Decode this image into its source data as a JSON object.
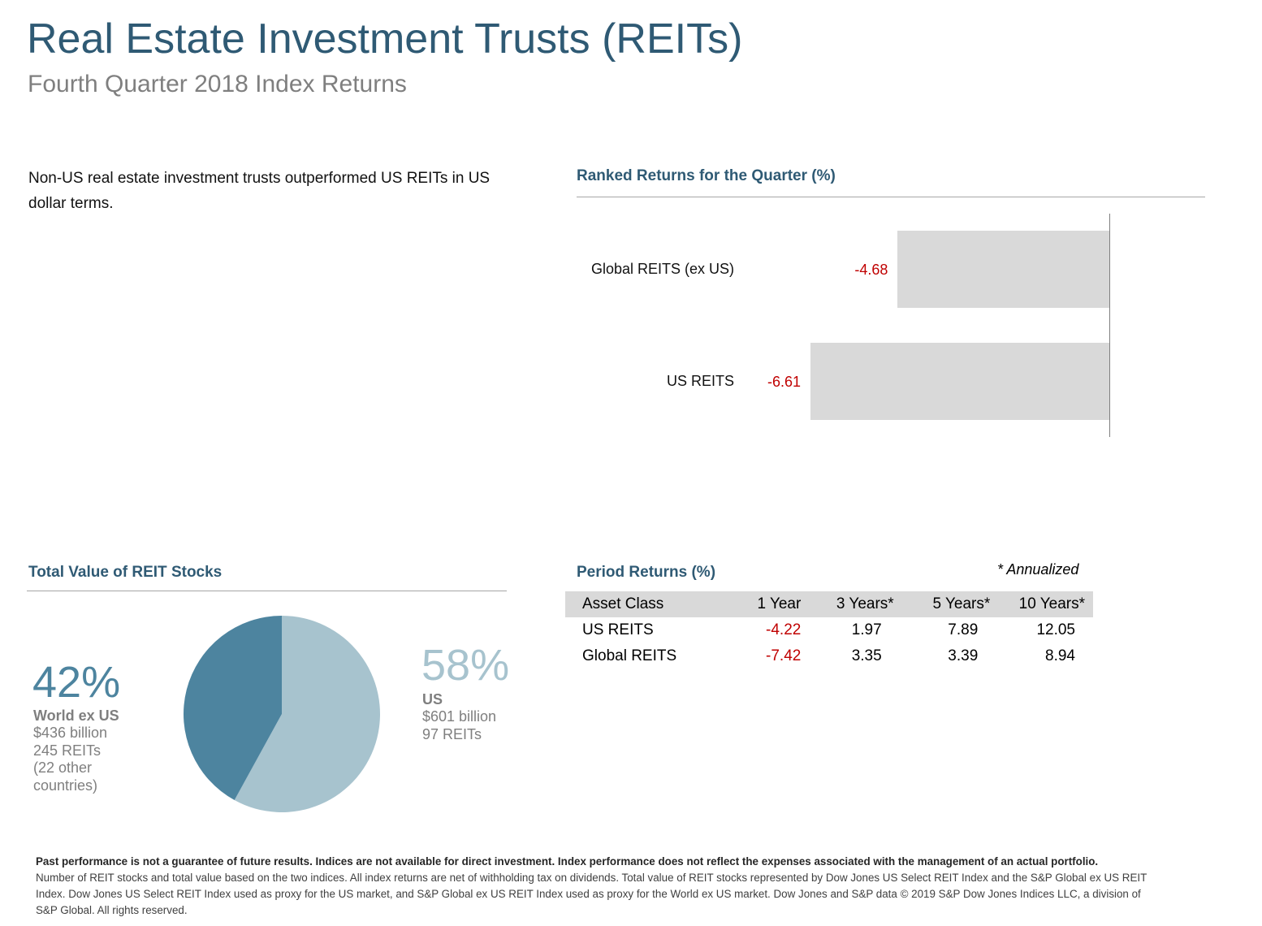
{
  "header": {
    "title": "Real Estate Investment Trusts (REITs)",
    "subtitle": "Fourth Quarter 2018 Index Returns"
  },
  "intro_text": "Non-US real estate investment trusts outperformed US REITs in US dollar terms.",
  "colors": {
    "title": "#2f5a74",
    "negative": "#c00000",
    "bar": "#d9d9d9",
    "pie_world": "#4d849f",
    "pie_us": "#a7c3ce"
  },
  "ranked_returns": {
    "title": "Ranked Returns for the Quarter (%)"
  },
  "period_returns": {
    "title": "Period Returns (%)",
    "note": "* Annualized",
    "columns": [
      "Asset Class",
      "1 Year",
      "3 Years*",
      "5 Years*",
      "10 Years*"
    ],
    "rows": [
      {
        "name": "US REITS",
        "values": [
          "-4.22",
          "1.97",
          "7.89",
          "12.05"
        ]
      },
      {
        "name": "Global REITS",
        "values": [
          "-7.42",
          "3.35",
          "3.39",
          "8.94"
        ]
      }
    ]
  },
  "total_value": {
    "title": "Total Value of REIT Stocks",
    "world": {
      "pct": "42%",
      "name": "World ex US",
      "value": "$436 billion",
      "count": "245 REITs",
      "note": "(22 other countries)"
    },
    "us": {
      "pct": "58%",
      "name": "US",
      "value": "$601 billion",
      "count": "97 REITs"
    }
  },
  "footnote": {
    "bold": "Past performance is not a guarantee of future results. Indices are not available for direct investment. Index performance does not reflect the expenses associated with the management of an actual portfolio.",
    "text": "Number of REIT stocks and total value based on the two indices. All index returns are net of withholding tax on dividends. Total value of REIT stocks represented by Dow Jones US Select REIT Index and the S&P Global ex US REIT Index. Dow Jones US Select REIT Index used as proxy for the US market, and S&P Global ex US REIT Index used as proxy for the World ex US market. Dow Jones and S&P data © 2019 S&P Dow Jones Indices LLC, a division of S&P Global. All rights reserved."
  },
  "chart_data": [
    {
      "type": "bar",
      "orientation": "horizontal",
      "title": "Ranked Returns for the Quarter (%)",
      "categories": [
        "Global REITS (ex US)",
        "US REITS"
      ],
      "values": [
        -4.68,
        -6.61
      ],
      "labels": [
        "-4.68",
        "-6.61"
      ]
    },
    {
      "type": "pie",
      "title": "Total Value of REIT Stocks",
      "categories": [
        "World ex US",
        "US"
      ],
      "values": [
        42,
        58
      ],
      "units": "%"
    },
    {
      "type": "table",
      "title": "Period Returns (%)",
      "columns": [
        "Asset Class",
        "1 Year",
        "3 Years*",
        "5 Years*",
        "10 Years*"
      ],
      "rows": [
        [
          "US REITS",
          -4.22,
          1.97,
          7.89,
          12.05
        ],
        [
          "Global REITS",
          -7.42,
          3.35,
          3.39,
          8.94
        ]
      ]
    }
  ]
}
